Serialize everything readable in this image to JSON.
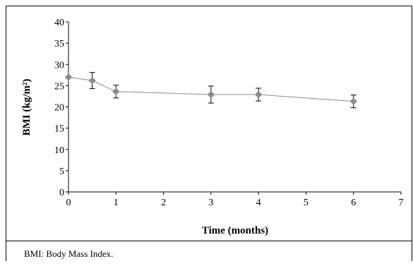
{
  "chart_data": {
    "type": "line",
    "xlabel": "Time (months)",
    "ylabel": "BMI (kg/m²)",
    "xlim": [
      0,
      7
    ],
    "ylim": [
      0,
      40
    ],
    "x_ticks": [
      "0",
      "1",
      "2",
      "3",
      "4",
      "5",
      "6",
      "7"
    ],
    "y_ticks": [
      "0",
      "5",
      "10",
      "15",
      "20",
      "25",
      "30",
      "35",
      "40"
    ],
    "grid": false,
    "series": [
      {
        "x": [
          0,
          0.5,
          1,
          3,
          4,
          6
        ],
        "y": [
          27.0,
          26.2,
          23.6,
          22.9,
          22.9,
          21.3
        ],
        "error": [
          0,
          1.9,
          1.5,
          2.0,
          1.5,
          1.5
        ],
        "color": "#8c8c8c",
        "marker": "diamond"
      }
    ]
  },
  "footnote": "BMI: Body Mass Index."
}
